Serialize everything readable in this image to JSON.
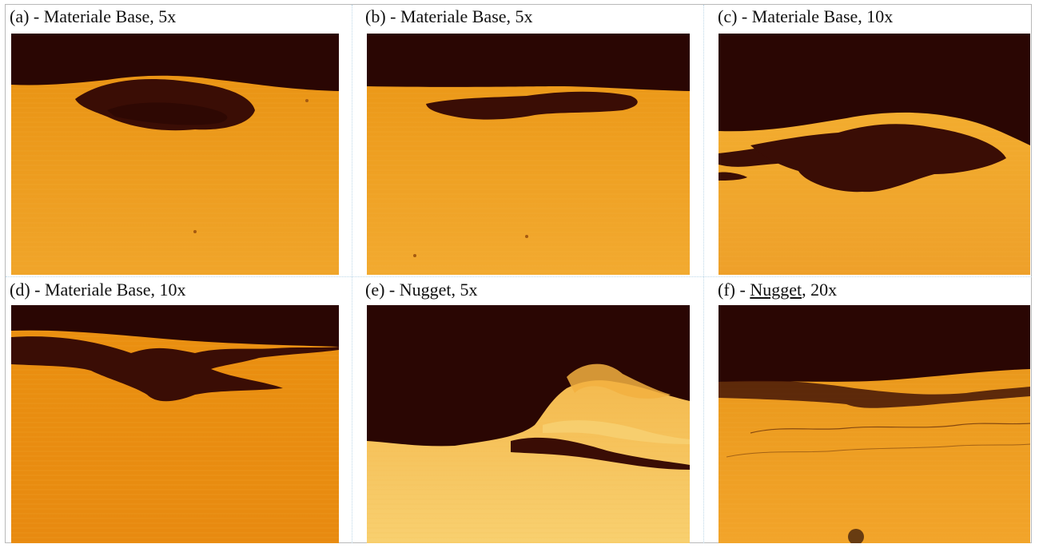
{
  "figure": {
    "panels": [
      {
        "id": "a",
        "caption": "(a) - Materiale Base, 5x"
      },
      {
        "id": "b",
        "caption": "(b) - Materiale Base, 5x"
      },
      {
        "id": "c",
        "caption": "(c) - Materiale Base, 10x"
      },
      {
        "id": "d",
        "caption": "(d) - Materiale Base, 10x"
      },
      {
        "id": "e",
        "caption": "(e) - Nugget, 5x"
      },
      {
        "id": "f",
        "caption_prefix": "(f) - ",
        "caption_word": "Nugget",
        "caption_suffix": ", 20x"
      }
    ],
    "colors": {
      "dark": "#2a0603",
      "metal": "#e8920f",
      "metal_light": "#f5b640",
      "defect": "#3a0d05"
    }
  }
}
